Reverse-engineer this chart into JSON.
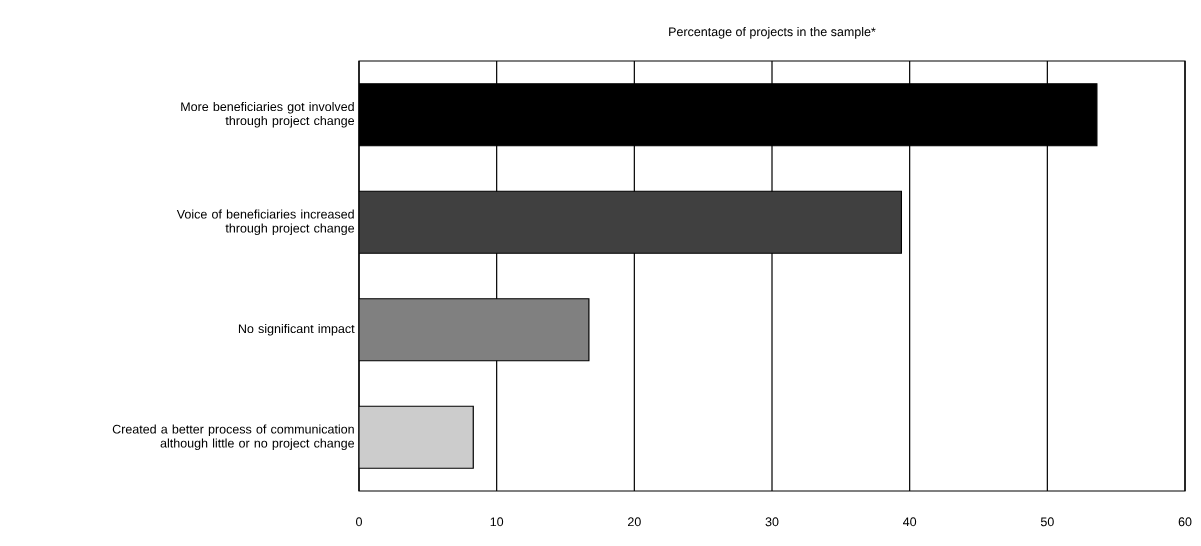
{
  "chart_data": {
    "type": "bar",
    "orientation": "horizontal",
    "title": "Percentage of projects in the sample*",
    "categories": [
      "More beneficiaries got involved through project change",
      "Voice of beneficiaries increased through project change",
      "No significant impact",
      "Created a better process of communication although little or no project change"
    ],
    "values": [
      53.6,
      39.4,
      16.7,
      8.3
    ],
    "colors": [
      "#000000",
      "#404040",
      "#808080",
      "#cccccc"
    ],
    "xlim": [
      0,
      60
    ],
    "xticks": [
      0,
      10,
      20,
      30,
      40,
      50,
      60
    ],
    "grid": "x"
  }
}
